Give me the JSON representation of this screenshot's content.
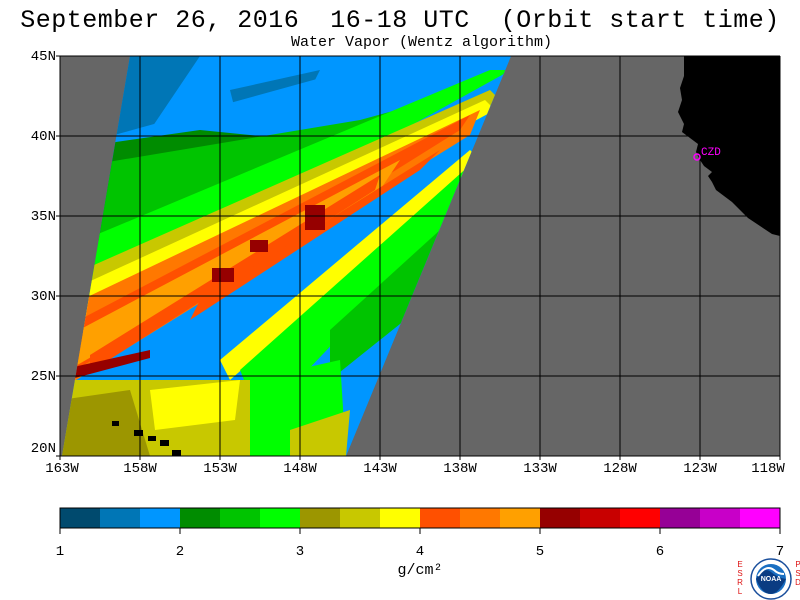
{
  "title": "September 26, 2016  16-18 UTC  (Orbit start time)",
  "subtitle": "Water Vapor (Wentz algorithm)",
  "latitude_labels": [
    "45N",
    "40N",
    "35N",
    "30N",
    "25N",
    "20N"
  ],
  "longitude_labels": [
    "163W",
    "158W",
    "153W",
    "148W",
    "143W",
    "138W",
    "133W",
    "128W",
    "123W",
    "118W"
  ],
  "colorbar": {
    "tick_labels": [
      "1",
      "2",
      "3",
      "4",
      "5",
      "6",
      "7"
    ],
    "unit": "g/cm²",
    "colors": [
      "#004a6e",
      "#0076b6",
      "#0096ff",
      "#008c00",
      "#00c400",
      "#00ff00",
      "#9c9600",
      "#c8c800",
      "#ffff00",
      "#ff5000",
      "#ff7800",
      "#ffa000",
      "#960000",
      "#c80000",
      "#ff0000",
      "#960096",
      "#c800c8",
      "#ff00ff"
    ]
  },
  "station": {
    "label": "CZD"
  },
  "colors": {
    "no_data": "#666666",
    "land": "#000000",
    "grid": "#000000",
    "station": "#ff00ff"
  },
  "logo": {
    "left_letters": [
      "E",
      "S",
      "R",
      "L"
    ],
    "right_letters": [
      "P",
      "S",
      "D"
    ],
    "emblem_text": "NOAA"
  }
}
